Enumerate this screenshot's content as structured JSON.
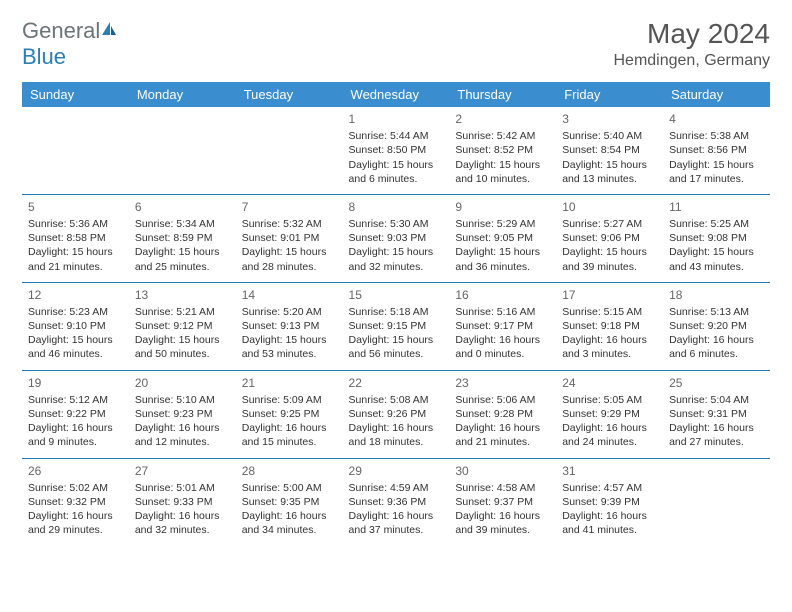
{
  "logo": {
    "text1": "General",
    "text2": "Blue"
  },
  "title": "May 2024",
  "location": "Hemdingen, Germany",
  "colors": {
    "header_bg": "#3a8dce",
    "header_text": "#ffffff",
    "row_border": "#2a7fba",
    "logo_gray": "#6b7478",
    "logo_blue": "#2a7fba",
    "text": "#333333",
    "background": "#ffffff"
  },
  "days_of_week": [
    "Sunday",
    "Monday",
    "Tuesday",
    "Wednesday",
    "Thursday",
    "Friday",
    "Saturday"
  ],
  "weeks": [
    [
      null,
      null,
      null,
      {
        "n": "1",
        "sr": "5:44 AM",
        "ss": "8:50 PM",
        "dl": "15 hours and 6 minutes."
      },
      {
        "n": "2",
        "sr": "5:42 AM",
        "ss": "8:52 PM",
        "dl": "15 hours and 10 minutes."
      },
      {
        "n": "3",
        "sr": "5:40 AM",
        "ss": "8:54 PM",
        "dl": "15 hours and 13 minutes."
      },
      {
        "n": "4",
        "sr": "5:38 AM",
        "ss": "8:56 PM",
        "dl": "15 hours and 17 minutes."
      }
    ],
    [
      {
        "n": "5",
        "sr": "5:36 AM",
        "ss": "8:58 PM",
        "dl": "15 hours and 21 minutes."
      },
      {
        "n": "6",
        "sr": "5:34 AM",
        "ss": "8:59 PM",
        "dl": "15 hours and 25 minutes."
      },
      {
        "n": "7",
        "sr": "5:32 AM",
        "ss": "9:01 PM",
        "dl": "15 hours and 28 minutes."
      },
      {
        "n": "8",
        "sr": "5:30 AM",
        "ss": "9:03 PM",
        "dl": "15 hours and 32 minutes."
      },
      {
        "n": "9",
        "sr": "5:29 AM",
        "ss": "9:05 PM",
        "dl": "15 hours and 36 minutes."
      },
      {
        "n": "10",
        "sr": "5:27 AM",
        "ss": "9:06 PM",
        "dl": "15 hours and 39 minutes."
      },
      {
        "n": "11",
        "sr": "5:25 AM",
        "ss": "9:08 PM",
        "dl": "15 hours and 43 minutes."
      }
    ],
    [
      {
        "n": "12",
        "sr": "5:23 AM",
        "ss": "9:10 PM",
        "dl": "15 hours and 46 minutes."
      },
      {
        "n": "13",
        "sr": "5:21 AM",
        "ss": "9:12 PM",
        "dl": "15 hours and 50 minutes."
      },
      {
        "n": "14",
        "sr": "5:20 AM",
        "ss": "9:13 PM",
        "dl": "15 hours and 53 minutes."
      },
      {
        "n": "15",
        "sr": "5:18 AM",
        "ss": "9:15 PM",
        "dl": "15 hours and 56 minutes."
      },
      {
        "n": "16",
        "sr": "5:16 AM",
        "ss": "9:17 PM",
        "dl": "16 hours and 0 minutes."
      },
      {
        "n": "17",
        "sr": "5:15 AM",
        "ss": "9:18 PM",
        "dl": "16 hours and 3 minutes."
      },
      {
        "n": "18",
        "sr": "5:13 AM",
        "ss": "9:20 PM",
        "dl": "16 hours and 6 minutes."
      }
    ],
    [
      {
        "n": "19",
        "sr": "5:12 AM",
        "ss": "9:22 PM",
        "dl": "16 hours and 9 minutes."
      },
      {
        "n": "20",
        "sr": "5:10 AM",
        "ss": "9:23 PM",
        "dl": "16 hours and 12 minutes."
      },
      {
        "n": "21",
        "sr": "5:09 AM",
        "ss": "9:25 PM",
        "dl": "16 hours and 15 minutes."
      },
      {
        "n": "22",
        "sr": "5:08 AM",
        "ss": "9:26 PM",
        "dl": "16 hours and 18 minutes."
      },
      {
        "n": "23",
        "sr": "5:06 AM",
        "ss": "9:28 PM",
        "dl": "16 hours and 21 minutes."
      },
      {
        "n": "24",
        "sr": "5:05 AM",
        "ss": "9:29 PM",
        "dl": "16 hours and 24 minutes."
      },
      {
        "n": "25",
        "sr": "5:04 AM",
        "ss": "9:31 PM",
        "dl": "16 hours and 27 minutes."
      }
    ],
    [
      {
        "n": "26",
        "sr": "5:02 AM",
        "ss": "9:32 PM",
        "dl": "16 hours and 29 minutes."
      },
      {
        "n": "27",
        "sr": "5:01 AM",
        "ss": "9:33 PM",
        "dl": "16 hours and 32 minutes."
      },
      {
        "n": "28",
        "sr": "5:00 AM",
        "ss": "9:35 PM",
        "dl": "16 hours and 34 minutes."
      },
      {
        "n": "29",
        "sr": "4:59 AM",
        "ss": "9:36 PM",
        "dl": "16 hours and 37 minutes."
      },
      {
        "n": "30",
        "sr": "4:58 AM",
        "ss": "9:37 PM",
        "dl": "16 hours and 39 minutes."
      },
      {
        "n": "31",
        "sr": "4:57 AM",
        "ss": "9:39 PM",
        "dl": "16 hours and 41 minutes."
      },
      null
    ]
  ],
  "labels": {
    "sunrise": "Sunrise: ",
    "sunset": "Sunset: ",
    "daylight": "Daylight: "
  }
}
